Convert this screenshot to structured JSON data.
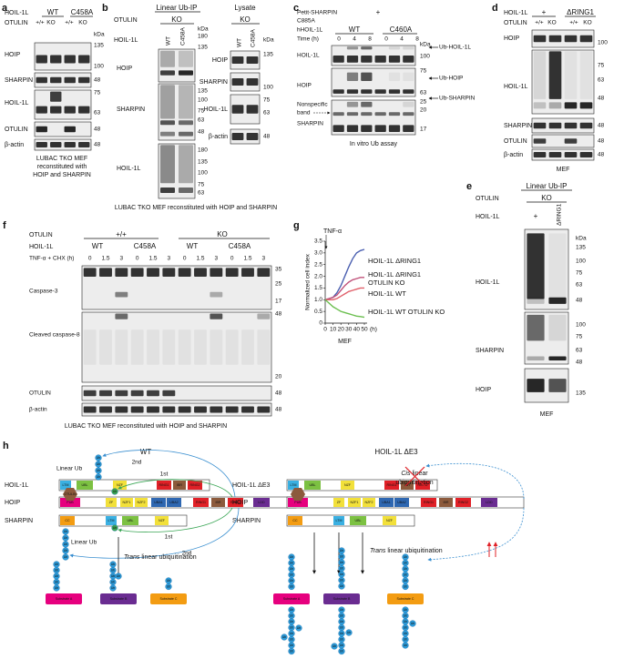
{
  "a": {
    "label": "a",
    "header": {
      "hoil": "HOIL-1L",
      "wt": "WT",
      "c458a": "C458A",
      "otulin": "OTULIN",
      "lanes": [
        "+/+",
        "KO",
        "+/+",
        "KO"
      ],
      "kda": "kDa"
    },
    "blots": [
      {
        "name": "HOIP",
        "markers": [
          "135",
          "100"
        ]
      },
      {
        "name": "SHARPIN",
        "markers": [
          "48"
        ]
      },
      {
        "name": "HOIL-1L",
        "markers": [
          "75",
          "63"
        ]
      },
      {
        "name": "OTULIN",
        "markers": [
          "48"
        ]
      },
      {
        "name": "β-actin",
        "markers": [
          "48"
        ]
      }
    ],
    "caption": [
      "LUBAC TKO MEF",
      "reconstituted with",
      "HOIP and SHARPIN"
    ]
  },
  "b": {
    "label": "b",
    "ip": "Linear Ub-IP",
    "lysate": "Lysate",
    "otulin": "OTULIN",
    "ko": "KO",
    "hoil": "HOIL-1L",
    "lanes": [
      "WT",
      "C458A"
    ],
    "kda": "kDa",
    "ip_blots": [
      {
        "name": "HOIP",
        "markers": [
          "180",
          "135"
        ]
      },
      {
        "name": "SHARPIN",
        "markers": [
          "135",
          "100",
          "75",
          "63",
          "48"
        ]
      },
      {
        "name": "HOIL-1L",
        "markers": [
          "180",
          "135",
          "100",
          "75",
          "63"
        ]
      }
    ],
    "lysate_blots": [
      {
        "name": "HOIP",
        "markers": [
          "135"
        ]
      },
      {
        "name": "SHARPIN",
        "markers": [
          "100"
        ]
      },
      {
        "name": "HOIL-1L",
        "markers": [
          "75",
          "63"
        ]
      },
      {
        "name": "β-actin",
        "markers": [
          "48"
        ]
      }
    ],
    "caption": "LUBAC TKO MEF reconstituted with HOIP and SHARPIN"
  },
  "c": {
    "label": "c",
    "rows": [
      "Petit-SHARPIN",
      "C885A",
      "hHOIL-1L",
      "Time (h)"
    ],
    "plus": "+",
    "wt": "WT",
    "c460a": "C460A",
    "times": [
      "0",
      "4",
      "8",
      "0",
      "4",
      "8"
    ],
    "kda": "kDa",
    "blots": [
      {
        "name": "HOIL-1L",
        "markers": [
          "100"
        ],
        "ub": "Ub-HOIL-1L"
      },
      {
        "name": "HOIP",
        "markers": [
          "75",
          "63"
        ],
        "ub": "Ub-HOIP"
      },
      {
        "name": "SHARPIN",
        "markers": [
          "25",
          "20",
          "17"
        ],
        "ub": "Ub-SHARPIN"
      }
    ],
    "nonspecific": [
      "Nonspecific",
      "band"
    ],
    "caption": "In vitro Ub assay"
  },
  "d": {
    "label": "d",
    "hoil": "HOIL-1L",
    "plus": "+",
    "dring1": "ΔRING1",
    "otulin": "OTULIN",
    "lanes": [
      "+/+",
      "KO",
      "+/+",
      "KO"
    ],
    "blots": [
      {
        "name": "HOIP",
        "markers": [
          "100"
        ]
      },
      {
        "name": "HOIL-1L",
        "markers": [
          "75",
          "63",
          "48"
        ]
      },
      {
        "name": "SHARPIN",
        "markers": [
          "48"
        ]
      },
      {
        "name": "OTULIN",
        "markers": [
          "48"
        ]
      },
      {
        "name": "β-actin",
        "markers": [
          "48"
        ]
      }
    ],
    "caption": "MEF"
  },
  "e": {
    "label": "e",
    "ip": "Linear Ub-IP",
    "otulin": "OTULIN",
    "ko": "KO",
    "hoil": "HOIL-1L",
    "plus": "+",
    "dring1": "ΔRING1",
    "kda": "kDa",
    "blots": [
      {
        "name": "HOIL-1L",
        "markers": [
          "135",
          "100",
          "75",
          "63",
          "48"
        ]
      },
      {
        "name": "SHARPIN",
        "markers": [
          "100",
          "75",
          "63",
          "48"
        ]
      },
      {
        "name": "HOIP",
        "markers": [
          "135"
        ]
      }
    ],
    "caption": "MEF"
  },
  "f": {
    "label": "f",
    "otulin": "OTULIN",
    "genotypes": [
      "+/+",
      "KO"
    ],
    "hoil": "HOIL-1L",
    "variants": [
      "WT",
      "C458A",
      "WT",
      "C458A"
    ],
    "treatment": "TNF-α + CHX (h)",
    "times": [
      "0",
      "1.5",
      "3",
      "0",
      "1.5",
      "3",
      "0",
      "1.5",
      "3",
      "0",
      "1.5",
      "3"
    ],
    "blots": [
      {
        "name": "Caspase-3",
        "markers": [
          "35",
          "25",
          "17"
        ]
      },
      {
        "name": "Cleaved caspase-8",
        "markers": [
          "48",
          "20"
        ]
      },
      {
        "name": "OTULIN",
        "markers": [
          "48"
        ]
      },
      {
        "name": "β-actin",
        "markers": [
          "48"
        ]
      }
    ],
    "caption": "LUBAC TKO MEF reconstituted with HOIP and SHARPIN"
  },
  "g": {
    "label": "g"
  },
  "chart_data": {
    "type": "line",
    "annotation": "TNF-α",
    "xlabel": "MEF",
    "x_unit": "(h)",
    "ylabel": "Normalized cell index",
    "x": [
      0,
      5,
      10,
      15,
      20,
      25,
      30,
      35,
      40,
      45,
      50
    ],
    "xlim": [
      0,
      50
    ],
    "xticks": [
      0,
      10,
      20,
      30,
      40,
      50
    ],
    "ylim": [
      0,
      3.5
    ],
    "yticks": [
      0,
      0.5,
      {
        "value": 1,
        "label": "1.0"
      },
      1.5,
      {
        "value": 2,
        "label": "2.0"
      },
      2.5,
      {
        "value": 3,
        "label": "3.0"
      },
      3.5
    ],
    "series": [
      {
        "name": "HOIL-1L ΔRING1",
        "color": "#4a5fb0",
        "values": [
          1.0,
          1.05,
          1.1,
          1.3,
          1.6,
          2.0,
          2.4,
          2.75,
          3.0,
          3.1,
          3.15
        ]
      },
      {
        "name": "HOIL-1L ΔRING1 OTULIN KO",
        "color": "#c0527a",
        "values": [
          1.0,
          1.05,
          1.1,
          1.2,
          1.4,
          1.6,
          1.75,
          1.85,
          1.9,
          1.95,
          1.95
        ]
      },
      {
        "name": "HOIL-1L WT",
        "color": "#e0606a",
        "values": [
          1.0,
          1.0,
          1.0,
          1.05,
          1.15,
          1.25,
          1.35,
          1.4,
          1.45,
          1.5,
          1.5
        ]
      },
      {
        "name": "HOIL-1L WT OTULIN KO",
        "color": "#6bbf4f",
        "values": [
          1.0,
          0.85,
          0.7,
          0.6,
          0.5,
          0.45,
          0.4,
          0.35,
          0.3,
          0.28,
          0.25
        ]
      }
    ]
  },
  "h": {
    "label": "h",
    "wt": "WT",
    "mut": "HOIL-1L ΔE3",
    "linear_ub": "Linear Ub",
    "second": "2nd",
    "first": "1st",
    "cis": "Cis",
    "cis_rest": "linear",
    "cis_line2": "ubiquitination",
    "trans": "Trans",
    "trans_rest": "linear ubiquitination",
    "hoil": "HOIL-1L",
    "hoip": "HOIP",
    "sharpin": "SHARPIN",
    "otulin": "OTULIN",
    "ub": "Ub",
    "hoil_domains": [
      "LTM",
      "UBL",
      "NZF",
      "RING1",
      "IBR",
      "RING2"
    ],
    "hoip_domains": [
      "PUB",
      "ZF",
      "NZF1",
      "NZF2",
      "UBA1",
      "UBA2",
      "RING1",
      "IBR",
      "RING2",
      "LDD"
    ],
    "sharpin_domains": [
      "CC",
      "LTM",
      "UBL",
      "NZF"
    ],
    "substrates": [
      "Substrate A",
      "Substrate B",
      "Substrate C"
    ]
  }
}
